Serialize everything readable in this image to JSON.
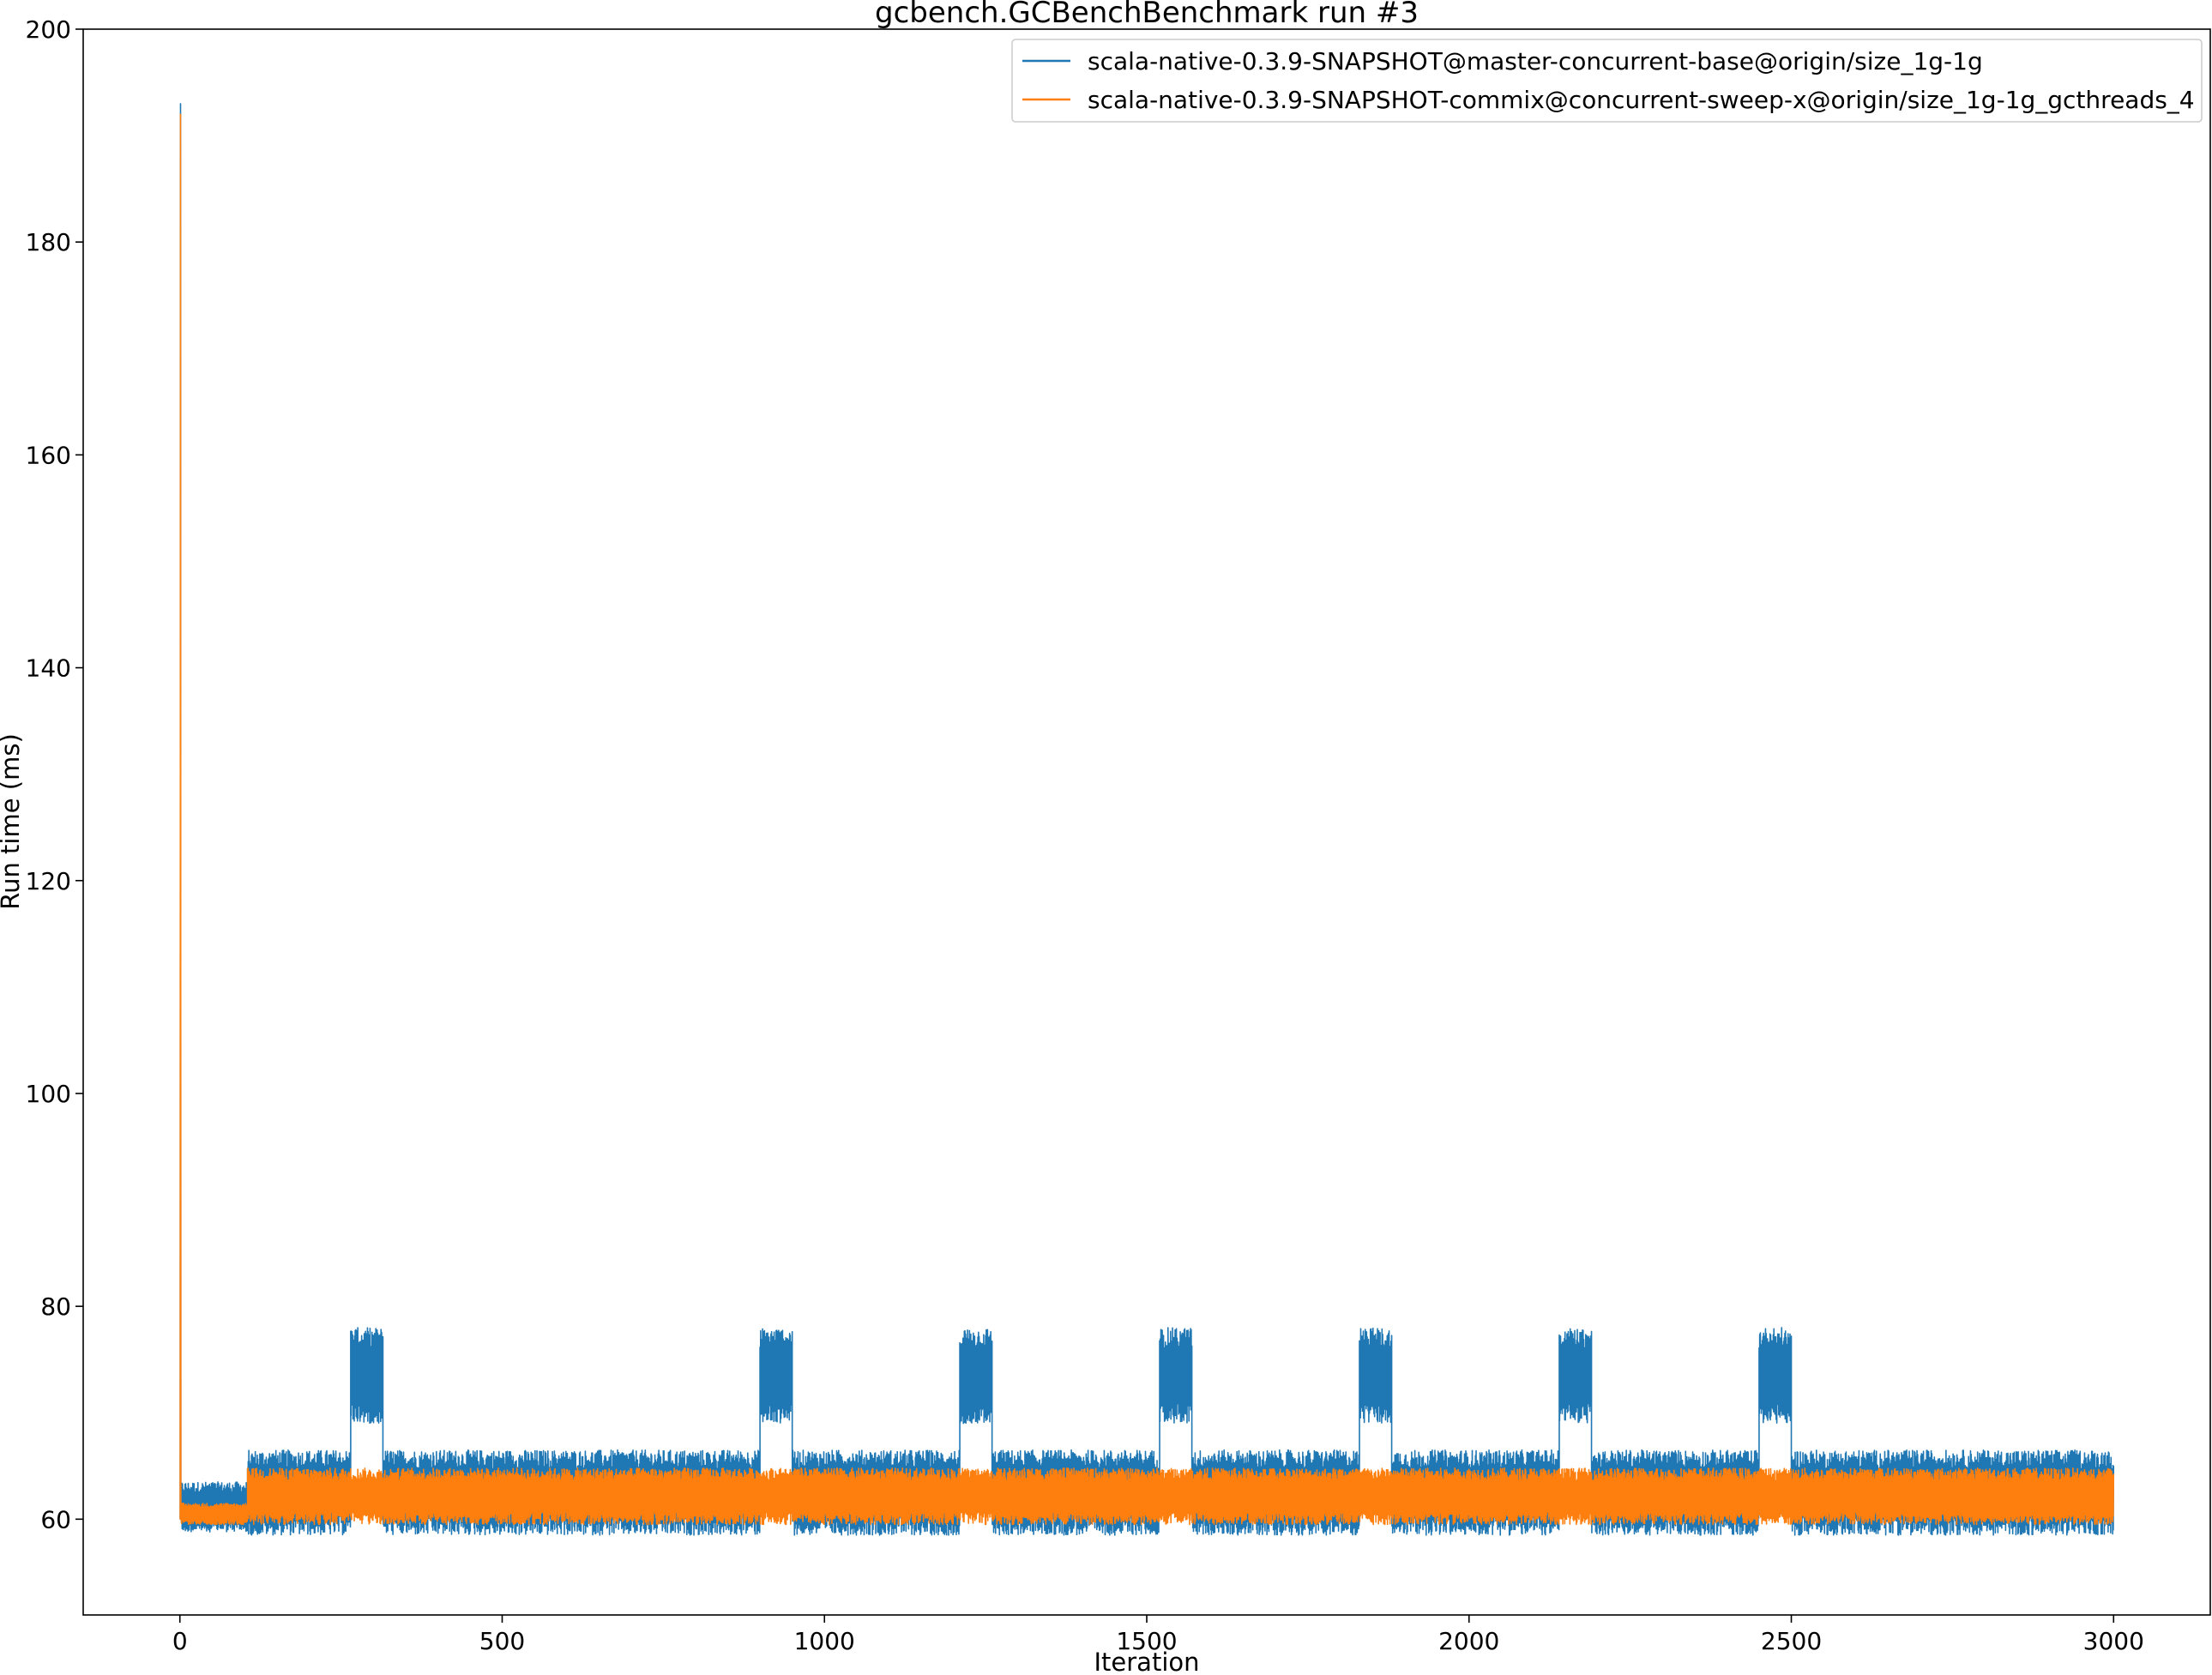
{
  "chart_data": {
    "type": "line",
    "title": "gcbench.GCBenchBenchmark run #3",
    "xlabel": "Iteration",
    "ylabel": "Run time (ms)",
    "xlim": [
      -150,
      3150
    ],
    "ylim": [
      51,
      200
    ],
    "xticks": [
      0,
      500,
      1000,
      1500,
      2000,
      2500,
      3000
    ],
    "yticks": [
      60,
      80,
      100,
      120,
      140,
      160,
      180,
      200
    ],
    "grid": false,
    "legend_position": "top-right",
    "series": [
      {
        "name": "scala-native-0.3.9-SNAPSHOT@master-concurrent-base@origin/size_1g-1g",
        "color": "#1f77b4",
        "segments": [
          {
            "from": 0,
            "to": 2,
            "low": 60,
            "high": 193
          },
          {
            "from": 2,
            "to": 105,
            "low": 58.8,
            "high": 63.5
          },
          {
            "from": 105,
            "to": 265,
            "low": 58.5,
            "high": 66.5
          },
          {
            "from": 265,
            "to": 315,
            "low": 69,
            "high": 78
          },
          {
            "from": 315,
            "to": 900,
            "low": 58.5,
            "high": 66.5
          },
          {
            "from": 900,
            "to": 950,
            "low": 69,
            "high": 78
          },
          {
            "from": 950,
            "to": 1210,
            "low": 58.5,
            "high": 66.5
          },
          {
            "from": 1210,
            "to": 1260,
            "low": 69,
            "high": 78
          },
          {
            "from": 1260,
            "to": 1520,
            "low": 58.5,
            "high": 66.5
          },
          {
            "from": 1520,
            "to": 1570,
            "low": 69,
            "high": 78
          },
          {
            "from": 1570,
            "to": 1830,
            "low": 58.5,
            "high": 66.5
          },
          {
            "from": 1830,
            "to": 1880,
            "low": 69,
            "high": 78
          },
          {
            "from": 1880,
            "to": 2140,
            "low": 58.5,
            "high": 66.5
          },
          {
            "from": 2140,
            "to": 2190,
            "low": 69,
            "high": 78
          },
          {
            "from": 2190,
            "to": 2450,
            "low": 58.5,
            "high": 66.5
          },
          {
            "from": 2450,
            "to": 2500,
            "low": 69,
            "high": 78
          },
          {
            "from": 2500,
            "to": 3000,
            "low": 58.5,
            "high": 66.5
          }
        ]
      },
      {
        "name": "scala-native-0.3.9-SNAPSHOT-commix@concurrent-sweep-x@origin/size_1g-1g_gcthreads_4",
        "color": "#ff7f0e",
        "segments": [
          {
            "from": 0,
            "to": 2,
            "low": 60,
            "high": 192
          },
          {
            "from": 2,
            "to": 105,
            "low": 59.5,
            "high": 61.5
          },
          {
            "from": 105,
            "to": 3000,
            "low": 59.5,
            "high": 64.8
          }
        ]
      }
    ]
  }
}
